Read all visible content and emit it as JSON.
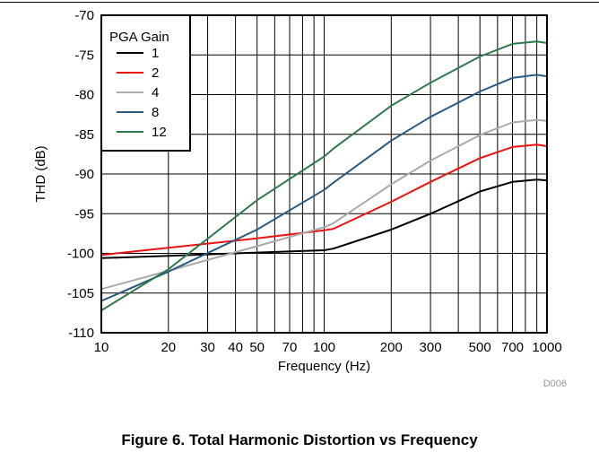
{
  "figure": {
    "caption": "Figure 6. Total Harmonic Distortion vs Frequency",
    "code": "D006"
  },
  "chart_data": {
    "type": "line",
    "xlabel": "Frequency (Hz)",
    "ylabel": "THD (dB)",
    "x_scale": "log",
    "xlim": [
      10,
      1000
    ],
    "ylim": [
      -110,
      -70
    ],
    "x_ticks": [
      10,
      20,
      30,
      40,
      50,
      70,
      100,
      200,
      300,
      500,
      700,
      1000
    ],
    "x_tick_labels": [
      "10",
      "20",
      "30",
      "40",
      "50",
      "70",
      "100",
      "200",
      "300",
      "500",
      "700",
      "1000"
    ],
    "y_ticks": [
      -70,
      -75,
      -80,
      -85,
      -90,
      -95,
      -100,
      -105,
      -110
    ],
    "y_tick_labels": [
      "-70",
      "-75",
      "-80",
      "-85",
      "-90",
      "-95",
      "-100",
      "-105",
      "-110"
    ],
    "grid": true,
    "legend_title": "PGA Gain",
    "legend_position": "top-left",
    "series": [
      {
        "name": "1",
        "color": "#000000",
        "x": [
          10,
          20,
          50,
          100,
          110,
          200,
          300,
          500,
          700,
          900,
          1000
        ],
        "y": [
          -100.6,
          -100.3,
          -99.9,
          -99.6,
          -99.4,
          -97.0,
          -95.0,
          -92.2,
          -91.0,
          -90.7,
          -90.8
        ]
      },
      {
        "name": "2",
        "color": "#ee1111",
        "x": [
          10,
          20,
          50,
          100,
          110,
          200,
          300,
          500,
          700,
          900,
          1000
        ],
        "y": [
          -100.2,
          -99.3,
          -98.1,
          -97.1,
          -96.9,
          -93.5,
          -91.0,
          -88.0,
          -86.6,
          -86.3,
          -86.5
        ]
      },
      {
        "name": "4",
        "color": "#aaaaaa",
        "x": [
          10,
          20,
          50,
          100,
          110,
          200,
          300,
          500,
          700,
          900,
          1000
        ],
        "y": [
          -104.5,
          -102.2,
          -99.1,
          -96.7,
          -96.2,
          -91.3,
          -88.3,
          -85.1,
          -83.5,
          -83.2,
          -83.3
        ]
      },
      {
        "name": "8",
        "color": "#2a5a80",
        "x": [
          10,
          20,
          50,
          100,
          110,
          200,
          300,
          500,
          700,
          900,
          1000
        ],
        "y": [
          -106.0,
          -102.3,
          -97.0,
          -92.0,
          -91.1,
          -85.8,
          -82.8,
          -79.6,
          -77.9,
          -77.5,
          -77.7
        ]
      },
      {
        "name": "12",
        "color": "#2e7b4a",
        "x": [
          10,
          20,
          50,
          100,
          110,
          200,
          300,
          500,
          700,
          900,
          1000
        ],
        "y": [
          -107.2,
          -102.0,
          -93.3,
          -87.8,
          -86.8,
          -81.4,
          -78.5,
          -75.2,
          -73.6,
          -73.3,
          -73.5
        ]
      }
    ]
  }
}
